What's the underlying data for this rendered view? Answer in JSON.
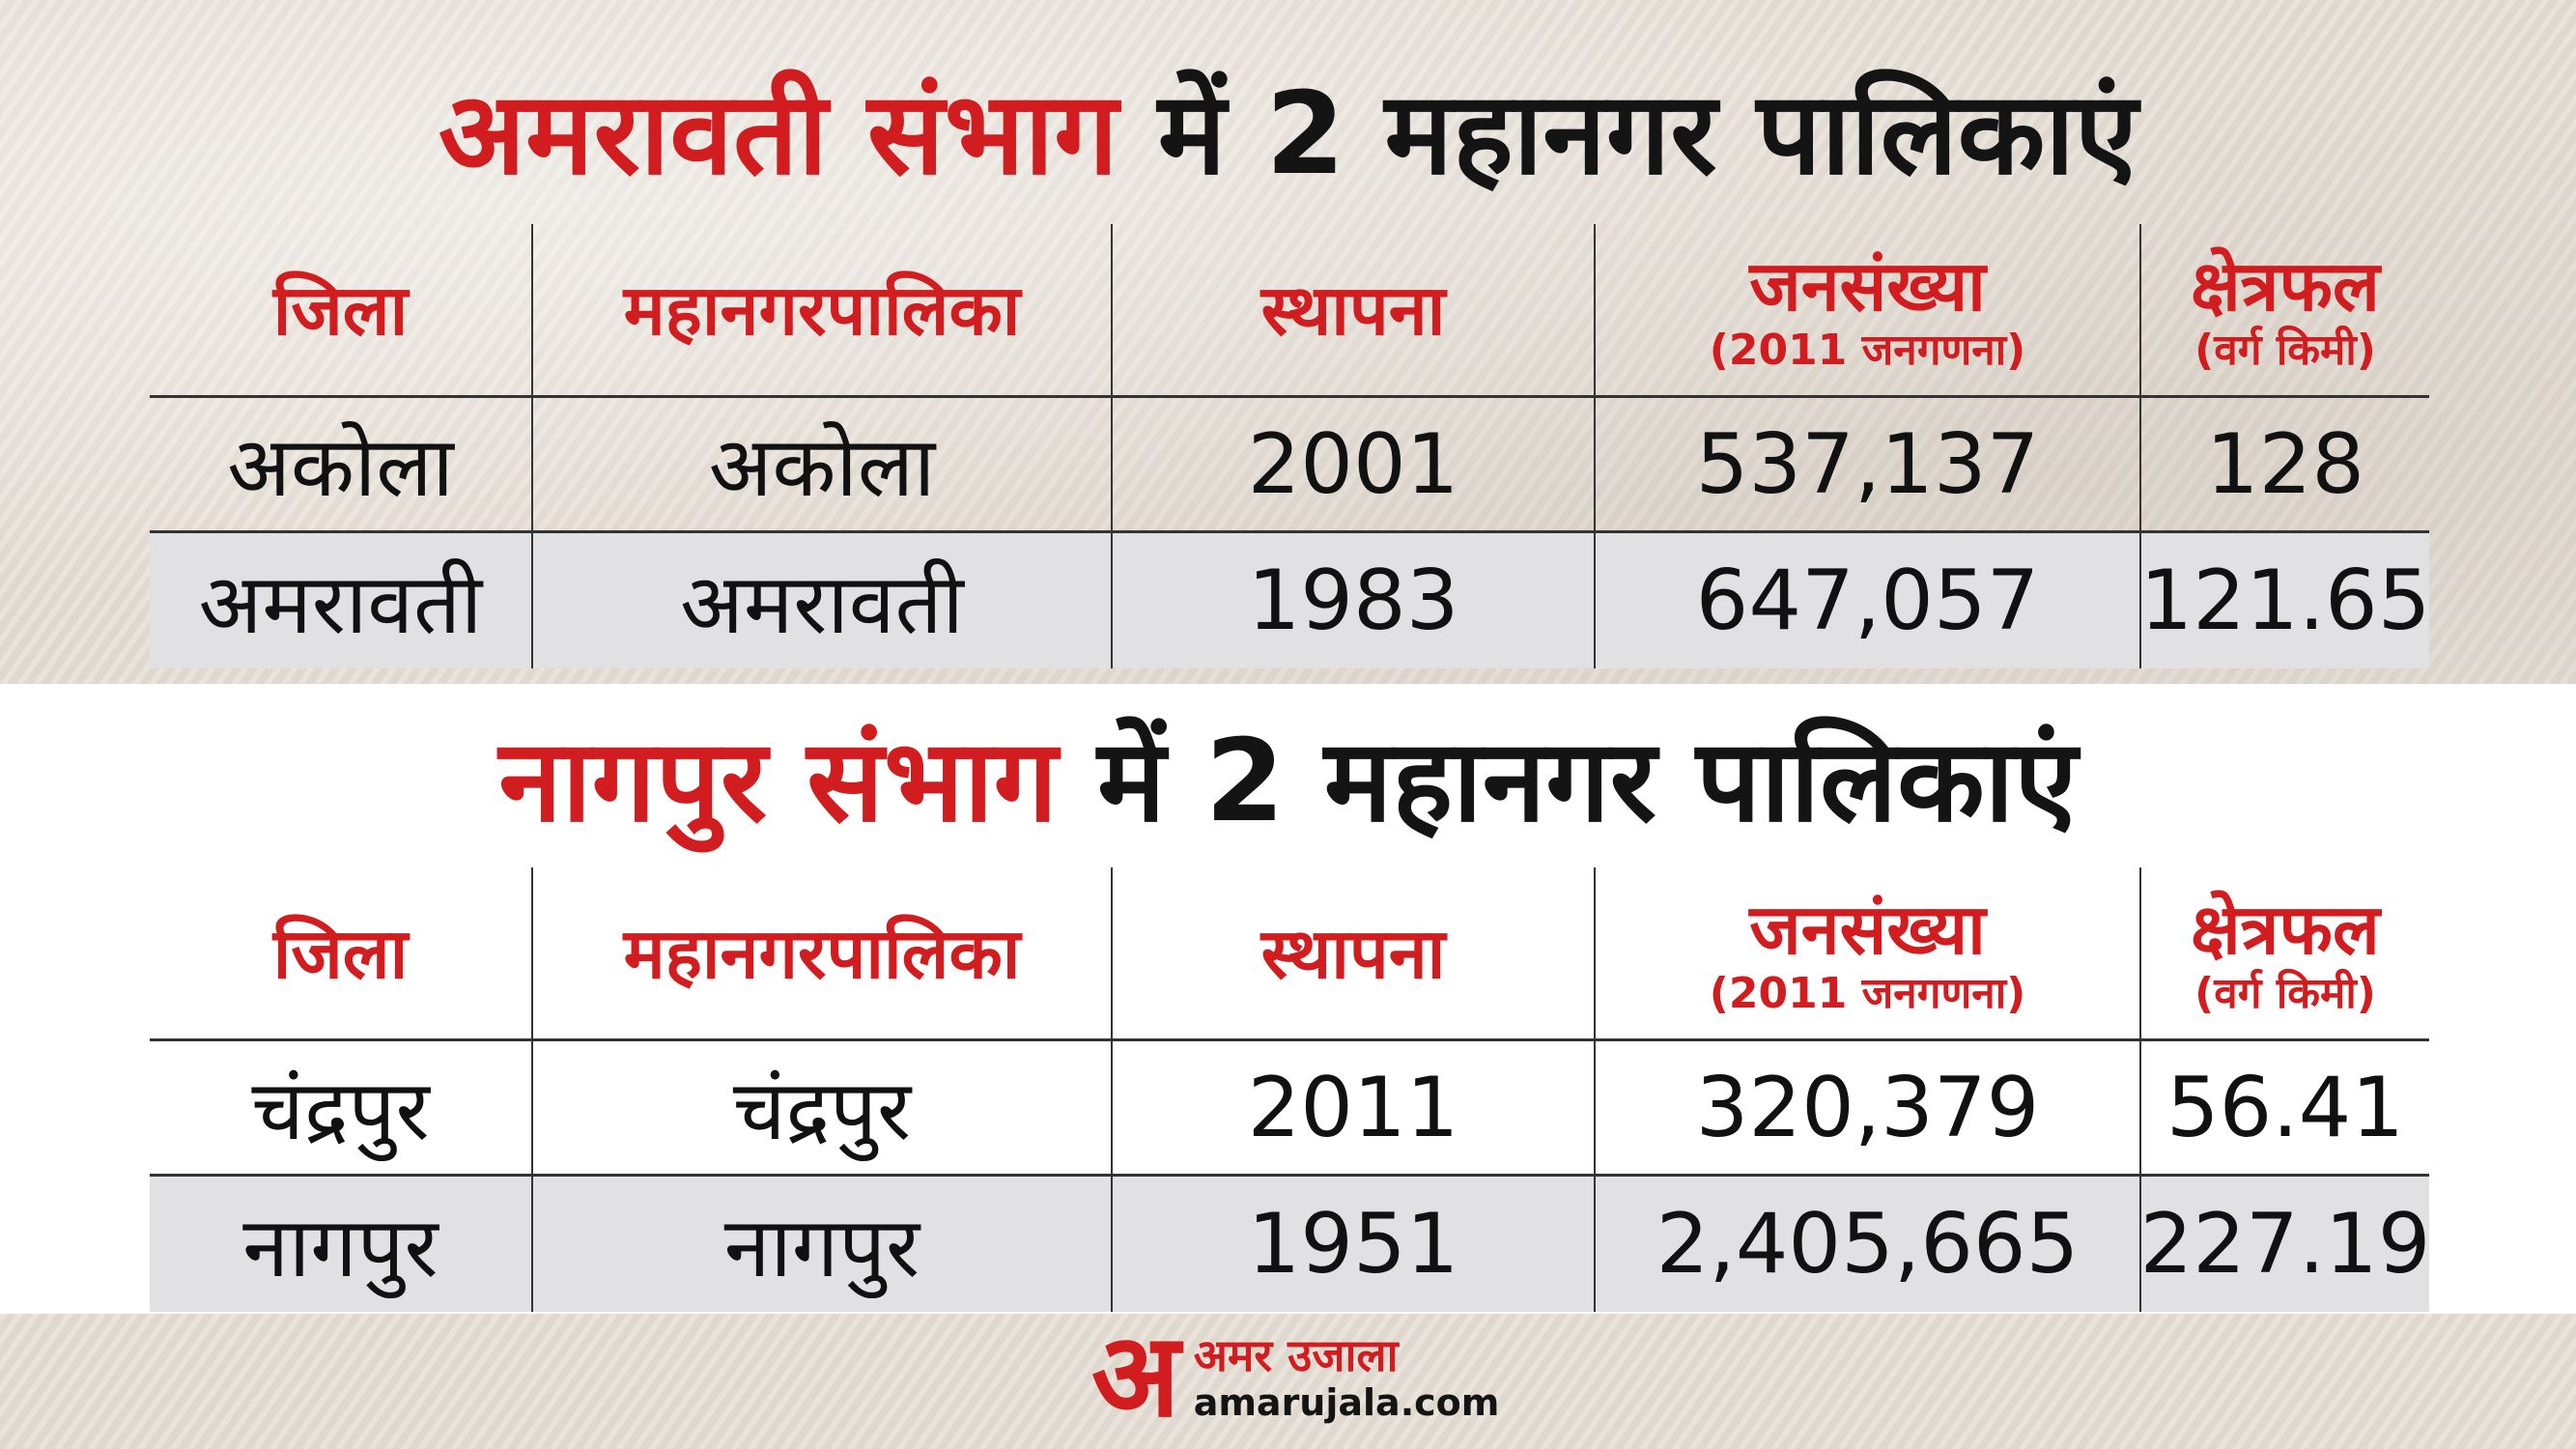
{
  "section1": {
    "title_highlight": "अमरावती संभाग",
    "title_rest": "में 2 महानगर पालिकाएं",
    "headers": {
      "district": "जिला",
      "corporation": "महानगरपालिका",
      "established": "स्थापना",
      "population": "जनसंख्या",
      "population_sub": "(2011 जनगणना)",
      "area": "क्षेत्रफल",
      "area_sub": "(वर्ग किमी)"
    },
    "rows": [
      {
        "district": "अकोला",
        "corporation": "अकोला",
        "established": "2001",
        "population": "537,137",
        "area": "128"
      },
      {
        "district": "अमरावती",
        "corporation": "अमरावती",
        "established": "1983",
        "population": "647,057",
        "area": "121.65"
      }
    ]
  },
  "section2": {
    "title_highlight": "नागपुर संभाग",
    "title_rest": "में 2 महानगर पालिकाएं",
    "headers": {
      "district": "जिला",
      "corporation": "महानगरपालिका",
      "established": "स्थापना",
      "population": "जनसंख्या",
      "population_sub": "(2011 जनगणना)",
      "area": "क्षेत्रफल",
      "area_sub": "(वर्ग किमी)"
    },
    "rows": [
      {
        "district": "चंद्रपुर",
        "corporation": "चंद्रपुर",
        "established": "2011",
        "population": "320,379",
        "area": "56.41"
      },
      {
        "district": "नागपुर",
        "corporation": "नागपुर",
        "established": "1951",
        "population": "2,405,665",
        "area": "227.19"
      }
    ]
  },
  "logo": {
    "mark": "अ",
    "brand": "अमर उजाला",
    "url": "amarujala.com"
  },
  "colors": {
    "accent": "#d11d1f",
    "text": "#141414",
    "row_shade": "#e1e1e3"
  }
}
